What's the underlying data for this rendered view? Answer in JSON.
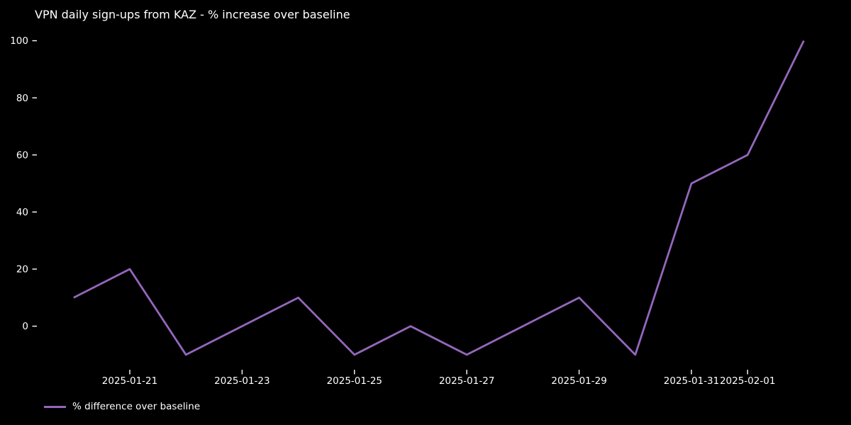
{
  "page": {
    "background_color": "#000000",
    "text_color": "#ffffff"
  },
  "chart_data": {
    "type": "line",
    "title": "VPN daily sign-ups from KAZ - % increase over baseline",
    "x": [
      "2025-01-20",
      "2025-01-21",
      "2025-01-22",
      "2025-01-23",
      "2025-01-24",
      "2025-01-25",
      "2025-01-26",
      "2025-01-27",
      "2025-01-28",
      "2025-01-29",
      "2025-01-30",
      "2025-01-31",
      "2025-02-01",
      "2025-02-02"
    ],
    "series": [
      {
        "name": "% difference over baseline",
        "color": "#9467bd",
        "values": [
          10,
          20,
          -10,
          0,
          10,
          -10,
          0,
          -10,
          0,
          10,
          -10,
          50,
          60,
          100
        ]
      }
    ],
    "xlabel": "",
    "ylabel": "",
    "ylim": [
      -15,
      105
    ],
    "yticks": [
      0,
      20,
      40,
      60,
      80,
      100
    ],
    "xticks": [
      {
        "index": 1,
        "label": "2025-01-21"
      },
      {
        "index": 3,
        "label": "2025-01-23"
      },
      {
        "index": 5,
        "label": "2025-01-25"
      },
      {
        "index": 7,
        "label": "2025-01-27"
      },
      {
        "index": 9,
        "label": "2025-01-29"
      },
      {
        "index": 11,
        "label": "2025-01-31"
      },
      {
        "index": 12,
        "label": "2025-02-01"
      }
    ],
    "grid": false,
    "legend_position": "lower left",
    "tick_color": "#ffffff"
  }
}
